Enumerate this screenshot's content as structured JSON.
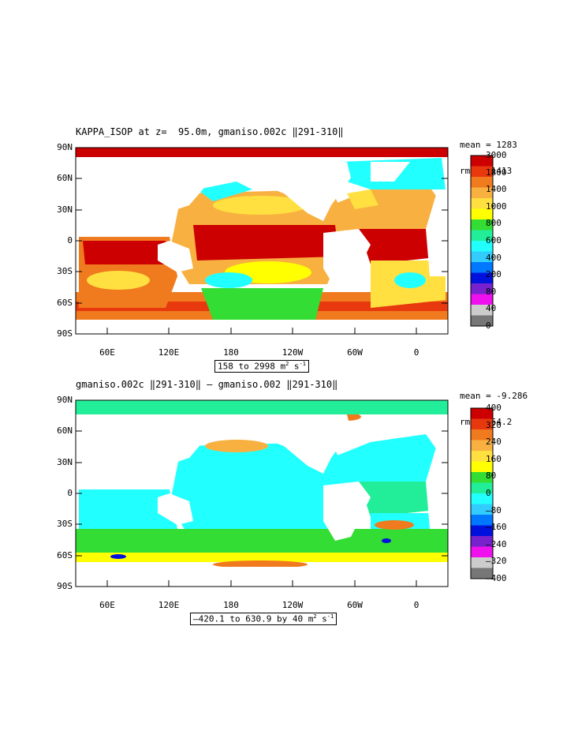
{
  "panels": [
    {
      "id": "top",
      "title": "KAPPA_ISOP at z=  95.0m, gmaniso.002c ‖291-310‖",
      "stats": {
        "mean": "mean = 1283",
        "rms": "rms = 1413"
      },
      "range_text": "158 to 2998 m",
      "range_sup": "2",
      "range_tail": " s",
      "range_sup2": "-1",
      "colorbar": {
        "labels": [
          "3000",
          "1800",
          "1400",
          "1000",
          "800",
          "600",
          "400",
          "200",
          "80",
          "40",
          "0"
        ],
        "colors": [
          "#cc0000",
          "#e8380e",
          "#f07a1e",
          "#f8b040",
          "#ffe040",
          "#ffff00",
          "#33dd33",
          "#22ee99",
          "#22ffff",
          "#33ccff",
          "#0077ff",
          "#0011dd",
          "#7722cc",
          "#ee11ee",
          "#cccccc",
          "#777777"
        ]
      }
    },
    {
      "id": "bottom",
      "title": "gmaniso.002c ‖291-310‖ – gmaniso.002 ‖291-310‖",
      "stats": {
        "mean": "mean = -9.286",
        "rms": "rms = 54.2"
      },
      "range_text": "–420.1 to 630.9 by 40 m",
      "range_sup": "2",
      "range_tail": " s",
      "range_sup2": "-1",
      "colorbar": {
        "labels": [
          "400",
          "320",
          "240",
          "160",
          "80",
          "0",
          "–80",
          "–160",
          "–240",
          "–320",
          "–400"
        ],
        "colors": [
          "#cc0000",
          "#e8380e",
          "#f07a1e",
          "#f8b040",
          "#ffe040",
          "#ffff00",
          "#33dd33",
          "#22ee99",
          "#22ffff",
          "#33ccff",
          "#0077ff",
          "#0011dd",
          "#7722cc",
          "#ee11ee",
          "#cccccc",
          "#777777"
        ]
      }
    }
  ],
  "lat_ticks": [
    "90N",
    "60N",
    "30N",
    "0",
    "30S",
    "60S",
    "90S"
  ],
  "lon_ticks": [
    "60E",
    "120E",
    "180",
    "120W",
    "60W",
    "0"
  ]
}
